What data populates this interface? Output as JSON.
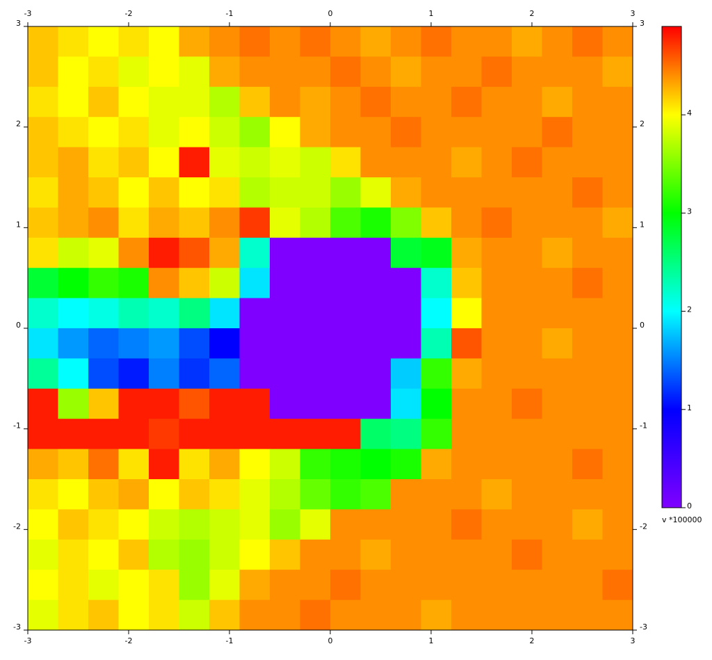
{
  "chart_data": {
    "type": "heatmap",
    "xlim": [
      -3,
      3
    ],
    "ylim": [
      -3,
      3
    ],
    "xticks": [
      -3,
      -2,
      -1,
      0,
      1,
      2,
      3
    ],
    "yticks": [
      -3,
      -2,
      -1,
      0,
      1,
      2,
      3
    ],
    "zlim": [
      0,
      4.9
    ],
    "zticks": [
      0,
      1,
      2,
      3,
      4
    ],
    "colorbar_label": "v *100000",
    "colorscale": [
      [
        0,
        "#8000ff"
      ],
      [
        1,
        "#0000ff"
      ],
      [
        2,
        "#00ffff"
      ],
      [
        3,
        "#00ff00"
      ],
      [
        4,
        "#ffff00"
      ],
      [
        4.9,
        "#ff0000"
      ]
    ],
    "values": [
      [
        4.2,
        4.1,
        4.0,
        4.1,
        4.0,
        4.3,
        4.4,
        4.5,
        4.4,
        4.5,
        4.4,
        4.3,
        4.4,
        4.5,
        4.4,
        4.4,
        4.3,
        4.4,
        4.5,
        4.4
      ],
      [
        4.2,
        4.0,
        4.1,
        3.9,
        4.0,
        3.9,
        4.3,
        4.4,
        4.4,
        4.4,
        4.5,
        4.4,
        4.3,
        4.4,
        4.4,
        4.5,
        4.4,
        4.4,
        4.4,
        4.3
      ],
      [
        4.1,
        4.0,
        4.2,
        4.0,
        3.9,
        3.9,
        3.7,
        4.2,
        4.4,
        4.3,
        4.4,
        4.5,
        4.4,
        4.4,
        4.5,
        4.4,
        4.4,
        4.3,
        4.4,
        4.4
      ],
      [
        4.2,
        4.1,
        4.0,
        4.1,
        3.9,
        4.0,
        3.8,
        3.6,
        4.0,
        4.3,
        4.4,
        4.4,
        4.5,
        4.4,
        4.4,
        4.4,
        4.4,
        4.5,
        4.4,
        4.4
      ],
      [
        4.2,
        4.3,
        4.1,
        4.2,
        4.0,
        4.8,
        3.9,
        3.8,
        3.9,
        3.8,
        4.1,
        4.4,
        4.4,
        4.4,
        4.3,
        4.4,
        4.5,
        4.4,
        4.4,
        4.4
      ],
      [
        4.1,
        4.3,
        4.2,
        4.0,
        4.2,
        4.0,
        4.1,
        3.7,
        3.8,
        3.8,
        3.6,
        3.9,
        4.3,
        4.4,
        4.4,
        4.4,
        4.4,
        4.4,
        4.5,
        4.4
      ],
      [
        4.2,
        4.3,
        4.4,
        4.1,
        4.3,
        4.2,
        4.4,
        4.7,
        3.9,
        3.7,
        3.3,
        3.1,
        3.5,
        4.2,
        4.4,
        4.5,
        4.4,
        4.4,
        4.4,
        4.3
      ],
      [
        4.1,
        3.8,
        3.9,
        4.4,
        4.8,
        4.6,
        4.3,
        2.2,
        0,
        0,
        0,
        0,
        2.8,
        2.9,
        4.3,
        4.4,
        4.4,
        4.3,
        4.4,
        4.4
      ],
      [
        2.8,
        3.0,
        3.2,
        3.1,
        4.4,
        4.2,
        3.8,
        1.9,
        0,
        0,
        0,
        0,
        0,
        2.2,
        4.2,
        4.4,
        4.4,
        4.4,
        4.5,
        4.4
      ],
      [
        2.2,
        2.0,
        2.1,
        2.3,
        2.2,
        2.5,
        1.9,
        0,
        0,
        0,
        0,
        0,
        0,
        2.0,
        4.0,
        4.4,
        4.4,
        4.4,
        4.4,
        4.4
      ],
      [
        1.9,
        1.6,
        1.4,
        1.5,
        1.6,
        1.3,
        1.0,
        0,
        0,
        0,
        0,
        0,
        0,
        2.3,
        4.6,
        4.4,
        4.4,
        4.3,
        4.4,
        4.4
      ],
      [
        2.4,
        2.0,
        1.3,
        1.1,
        1.5,
        1.2,
        1.4,
        0,
        0,
        0,
        0,
        0,
        1.8,
        3.2,
        4.3,
        4.4,
        4.4,
        4.4,
        4.4,
        4.4
      ],
      [
        4.8,
        3.6,
        4.2,
        4.8,
        4.8,
        4.6,
        4.8,
        4.8,
        0,
        0,
        0,
        0,
        1.9,
        3.0,
        4.4,
        4.4,
        4.5,
        4.4,
        4.4,
        4.4
      ],
      [
        4.8,
        4.8,
        4.8,
        4.8,
        4.7,
        4.8,
        4.8,
        4.8,
        4.8,
        4.8,
        4.8,
        2.6,
        2.5,
        3.2,
        4.4,
        4.4,
        4.4,
        4.4,
        4.4,
        4.4
      ],
      [
        4.3,
        4.2,
        4.5,
        4.1,
        4.8,
        4.1,
        4.3,
        4.0,
        3.8,
        3.2,
        3.1,
        3.0,
        3.1,
        4.3,
        4.4,
        4.4,
        4.4,
        4.4,
        4.5,
        4.4
      ],
      [
        4.1,
        4.0,
        4.2,
        4.3,
        4.0,
        4.2,
        4.1,
        3.9,
        3.7,
        3.4,
        3.2,
        3.3,
        4.4,
        4.4,
        4.4,
        4.3,
        4.4,
        4.4,
        4.4,
        4.4
      ],
      [
        4.0,
        4.2,
        4.1,
        4.0,
        3.8,
        3.7,
        3.8,
        3.9,
        3.6,
        3.9,
        4.4,
        4.4,
        4.4,
        4.4,
        4.5,
        4.4,
        4.4,
        4.4,
        4.3,
        4.4
      ],
      [
        3.9,
        4.1,
        4.0,
        4.2,
        3.7,
        3.6,
        3.8,
        4.0,
        4.2,
        4.4,
        4.4,
        4.3,
        4.4,
        4.4,
        4.4,
        4.4,
        4.5,
        4.4,
        4.4,
        4.4
      ],
      [
        4.0,
        4.1,
        3.9,
        4.0,
        4.1,
        3.6,
        3.9,
        4.3,
        4.4,
        4.4,
        4.5,
        4.4,
        4.4,
        4.4,
        4.4,
        4.4,
        4.4,
        4.4,
        4.4,
        4.5
      ],
      [
        3.9,
        4.1,
        4.2,
        4.0,
        4.1,
        3.8,
        4.2,
        4.4,
        4.4,
        4.5,
        4.4,
        4.4,
        4.4,
        4.3,
        4.4,
        4.4,
        4.4,
        4.4,
        4.4,
        4.4
      ]
    ]
  }
}
